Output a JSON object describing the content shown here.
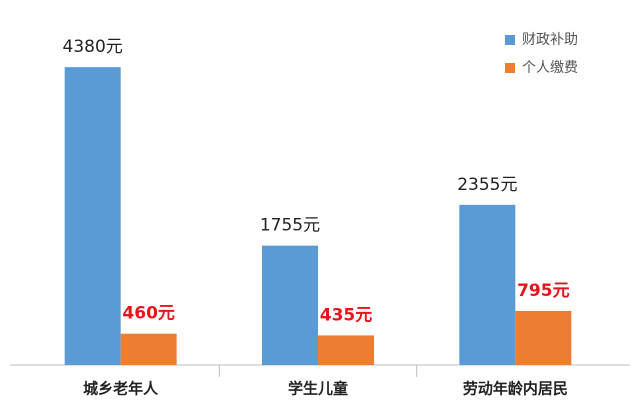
{
  "chart_data": {
    "type": "bar",
    "categories": [
      "城乡老年人",
      "学生儿童",
      "劳动年龄内居民"
    ],
    "series": [
      {
        "name": "财政补助",
        "color": "#5b9bd5",
        "label_color": "#222222",
        "values": [
          4380,
          1755,
          2355
        ],
        "value_labels": [
          "4380元",
          "1755元",
          "2355元"
        ]
      },
      {
        "name": "个人缴费",
        "color": "#ed7d31",
        "label_color": "#e8141b",
        "values": [
          460,
          435,
          795
        ],
        "value_labels": [
          "460元",
          "435元",
          "795元"
        ]
      }
    ],
    "ylim": [
      0,
      5000
    ],
    "legend": "top-right"
  }
}
